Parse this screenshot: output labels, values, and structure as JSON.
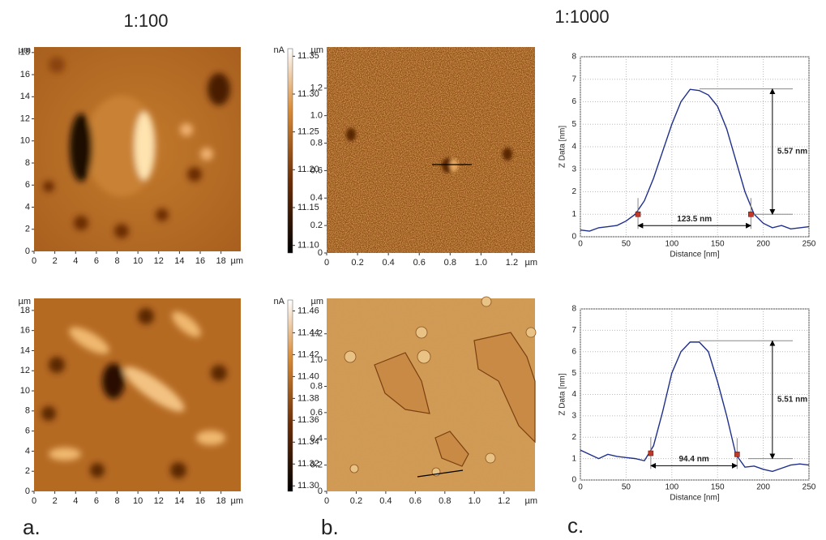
{
  "headers": [
    "1:100",
    "1:1000"
  ],
  "panel_labels": [
    "a.",
    "b.",
    "c."
  ],
  "maps": [
    {
      "x_unit": "µm",
      "y_unit": "µm",
      "xlim": [
        0,
        19.9
      ],
      "ylim": [
        0,
        18.5
      ],
      "xticks": [
        0,
        2,
        4,
        6,
        8,
        10,
        12,
        14,
        16,
        18
      ],
      "yticks": [
        0,
        2,
        4,
        6,
        8,
        10,
        12,
        14,
        16,
        18
      ],
      "colorbar": {
        "unit": "nA",
        "lim": [
          11.09,
          11.36
        ],
        "ticks": [
          {
            "value": 11.1,
            "label": "11.10"
          },
          {
            "value": 11.15,
            "label": "11.15"
          },
          {
            "value": 11.2,
            "label": "11.20"
          },
          {
            "value": 11.25,
            "label": "11.25"
          },
          {
            "value": 11.3,
            "label": "11.30"
          },
          {
            "value": 11.35,
            "label": "11.35"
          }
        ]
      }
    },
    {
      "x_unit": "µm",
      "y_unit": "µm",
      "xlim": [
        0,
        1.35
      ],
      "ylim": [
        0,
        1.5
      ],
      "xticks": [
        0,
        0.2,
        0.4,
        0.6,
        0.8,
        {
          "value": 1,
          "label": "1.0"
        },
        1.2
      ],
      "yticks": [
        0,
        0.2,
        0.4,
        0.6,
        0.8,
        {
          "value": 1,
          "label": "1.0"
        },
        1.2
      ]
    },
    {
      "x_unit": "µm",
      "y_unit": "µm",
      "xlim": [
        0,
        19.9
      ],
      "ylim": [
        0,
        19.2
      ],
      "xticks": [
        0,
        2,
        4,
        6,
        8,
        10,
        12,
        14,
        16,
        18
      ],
      "yticks": [
        0,
        2,
        4,
        6,
        8,
        10,
        12,
        14,
        16,
        18
      ],
      "colorbar": {
        "unit": "nA",
        "lim": [
          11.295,
          11.47
        ],
        "ticks": [
          {
            "value": 11.3,
            "label": "11.30"
          },
          11.32,
          11.34,
          11.36,
          11.38,
          {
            "value": 11.4,
            "label": "11.40"
          },
          11.42,
          11.44,
          11.46
        ]
      }
    },
    {
      "x_unit": "µm",
      "y_unit": "µm",
      "xlim": [
        0,
        1.41
      ],
      "ylim": [
        0,
        1.47
      ],
      "xticks": [
        0,
        0.2,
        0.4,
        0.6,
        0.8,
        {
          "value": 1,
          "label": "1.0"
        },
        1.2
      ],
      "yticks": [
        0,
        0.2,
        0.4,
        0.6,
        0.8,
        {
          "value": 1,
          "label": "1.0"
        },
        1.2
      ]
    }
  ],
  "chart_data": [
    {
      "type": "line",
      "xlabel": "Distance [nm]",
      "ylabel": "Z Data [nm]",
      "x": [
        0,
        10,
        20,
        30,
        40,
        50,
        60,
        70,
        80,
        90,
        100,
        110,
        120,
        130,
        140,
        150,
        160,
        170,
        180,
        190,
        200,
        210,
        220,
        230,
        240,
        250
      ],
      "series": [
        {
          "color": "#1f2f8a",
          "values": [
            0.3,
            0.25,
            0.4,
            0.45,
            0.5,
            0.7,
            1.0,
            1.6,
            2.6,
            3.8,
            5.0,
            6.0,
            6.55,
            6.5,
            6.3,
            5.8,
            4.8,
            3.4,
            2.0,
            1.0,
            0.6,
            0.4,
            0.5,
            0.35,
            0.4,
            0.45
          ]
        }
      ],
      "xlim": [
        0,
        250
      ],
      "ylim": [
        0,
        8
      ],
      "xticks": [
        0,
        50,
        100,
        150,
        200,
        250
      ],
      "yticks": [
        0,
        1,
        2,
        3,
        4,
        5,
        6,
        7,
        8
      ],
      "grid": true,
      "annotations": {
        "height_label": "5.57 nm",
        "width_label": "123.5 nm",
        "markers": {
          "x": [
            63,
            186.5
          ],
          "y": [
            1.0,
            1.0
          ]
        },
        "height_arrow": {
          "x": 210,
          "top": 6.57,
          "bottom": 1.0
        }
      }
    },
    {
      "type": "line",
      "xlabel": "Distance [nm]",
      "ylabel": "Z Data [nm]",
      "x": [
        0,
        10,
        20,
        30,
        40,
        50,
        60,
        70,
        80,
        90,
        100,
        110,
        120,
        130,
        140,
        150,
        160,
        170,
        180,
        190,
        200,
        210,
        220,
        230,
        240,
        250
      ],
      "series": [
        {
          "color": "#1f2f8a",
          "values": [
            1.4,
            1.2,
            1.0,
            1.2,
            1.1,
            1.05,
            1.0,
            0.9,
            1.6,
            3.2,
            5.0,
            6.0,
            6.45,
            6.45,
            6.0,
            4.6,
            3.0,
            1.2,
            0.6,
            0.65,
            0.5,
            0.4,
            0.55,
            0.7,
            0.75,
            0.7
          ]
        }
      ],
      "xlim": [
        0,
        250
      ],
      "ylim": [
        0,
        8
      ],
      "xticks": [
        0,
        50,
        100,
        150,
        200,
        250
      ],
      "yticks": [
        0,
        1,
        2,
        3,
        4,
        5,
        6,
        7,
        8
      ],
      "grid": true,
      "annotations": {
        "height_label": "5.51 nm",
        "width_label": "94.4 nm",
        "markers": {
          "x": [
            77,
            171.4
          ],
          "y": [
            1.25,
            1.2
          ]
        },
        "height_arrow": {
          "x": 210,
          "top": 6.51,
          "bottom": 1.0
        }
      }
    }
  ]
}
